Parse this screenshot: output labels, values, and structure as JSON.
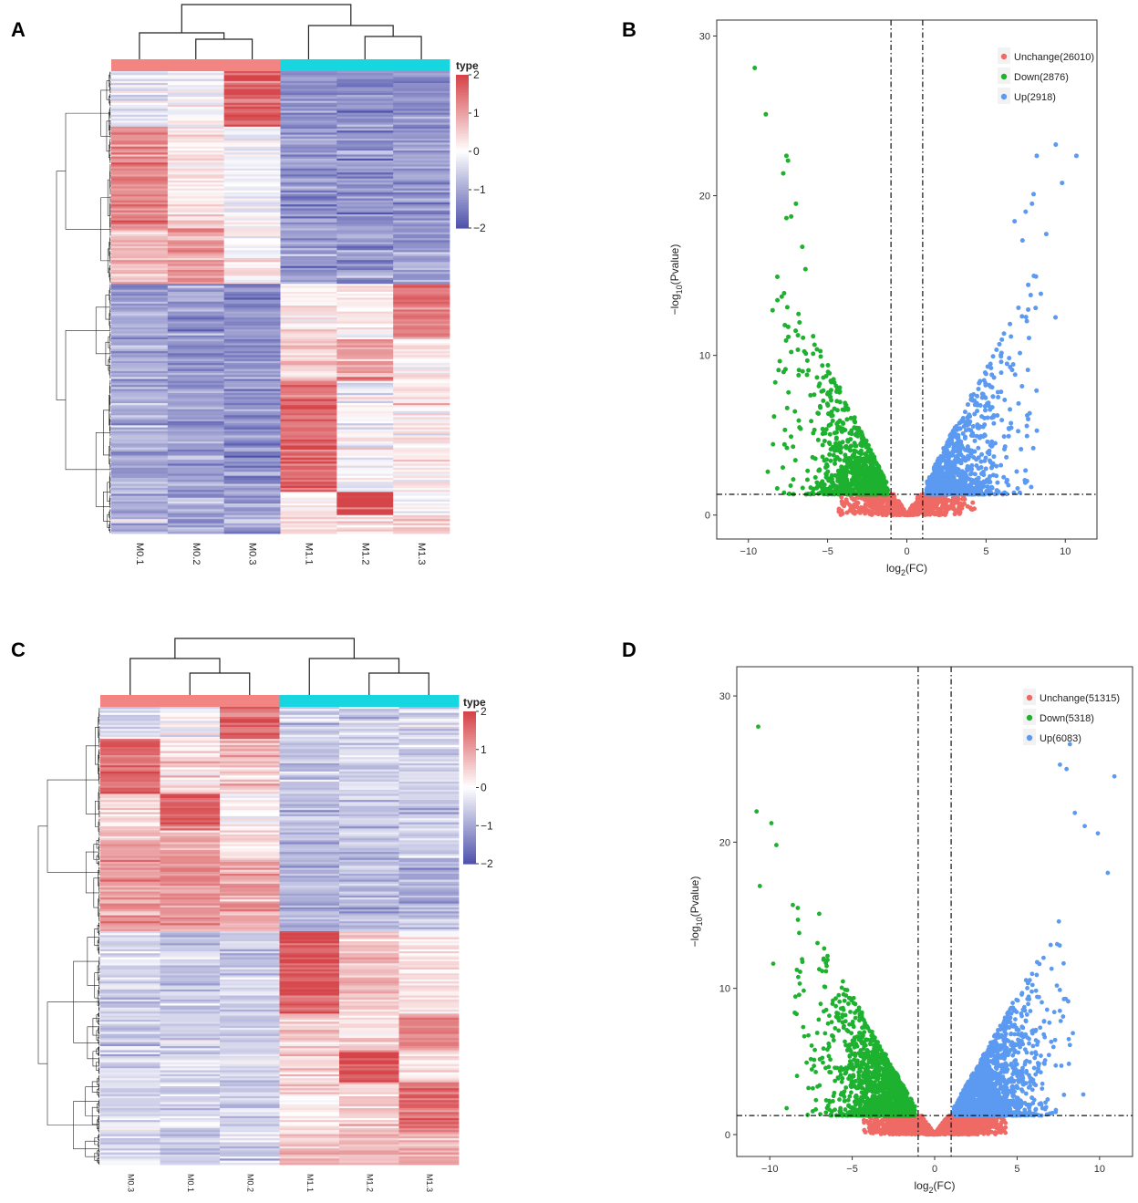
{
  "panel_labels": [
    "A",
    "B",
    "C",
    "D"
  ],
  "colors": {
    "heat_low": "#2b2f9a",
    "heat_mid": "#ffffff",
    "heat_high": "#d33a3f",
    "group_m0": "#f28482",
    "group_m1": "#17d6e0",
    "unchange": "#ef6a64",
    "down": "#1db12f",
    "up": "#5b9af0",
    "axis": "#333333"
  },
  "chart_data": [
    {
      "panel": "A",
      "type": "heatmap",
      "columns": [
        "M0.1",
        "M0.2",
        "M0.3",
        "M1.1",
        "M1.2",
        "M1.3"
      ],
      "groups": [
        "M0",
        "M0",
        "M0",
        "M1",
        "M1",
        "M1"
      ],
      "legend_title": "type",
      "scale_range": [
        -2,
        2
      ],
      "scale_ticks": [
        "2",
        "1",
        "0",
        "−1",
        "−2"
      ],
      "scale_values": [
        2,
        1,
        0,
        -1,
        -2
      ],
      "row_blocks": [
        {
          "share": 0.12,
          "means": [
            -0.3,
            -0.2,
            1.7,
            -1.2,
            -1.3,
            -1.2
          ]
        },
        {
          "share": 0.22,
          "means": [
            1.3,
            0.3,
            -0.1,
            -1.2,
            -1.3,
            -1.2
          ]
        },
        {
          "share": 0.12,
          "means": [
            0.7,
            1.1,
            0.1,
            -1.1,
            -1.2,
            -1.1
          ]
        },
        {
          "share": 0.12,
          "means": [
            -1.1,
            -1.2,
            -1.3,
            0.3,
            0.2,
            1.4
          ]
        },
        {
          "share": 0.09,
          "means": [
            -1.1,
            -1.2,
            -1.3,
            0.6,
            1.0,
            0.2
          ]
        },
        {
          "share": 0.24,
          "means": [
            -1.0,
            -1.1,
            -1.2,
            1.6,
            -0.1,
            0.2
          ]
        },
        {
          "share": 0.05,
          "means": [
            -1.0,
            -1.0,
            -1.1,
            0.2,
            1.9,
            0.0
          ]
        },
        {
          "share": 0.04,
          "means": [
            -1.0,
            -1.0,
            -1.1,
            0.3,
            0.4,
            0.5
          ]
        }
      ]
    },
    {
      "panel": "B",
      "type": "scatter",
      "xlabel_main": "log",
      "xlabel_sub": "2",
      "xlabel_tail": "(FC)",
      "ylabel_pre": "−log",
      "ylabel_sub": "10",
      "ylabel_tail": "(Pvalue)",
      "xlim": [
        -12,
        12
      ],
      "ylim": [
        -1.5,
        31
      ],
      "xticks": [
        -10,
        -5,
        0,
        5,
        10
      ],
      "xtick_labels": [
        "−10",
        "−5",
        "0",
        "5",
        "10"
      ],
      "yticks": [
        0,
        10,
        20,
        30
      ],
      "ytick_labels": [
        "0",
        "10",
        "20",
        "30"
      ],
      "fc_threshold": 1,
      "p_threshold": 1.3,
      "legend": [
        "Unchange(26010)",
        "Down(2876)",
        "Up(2918)"
      ],
      "counts": {
        "unchange": 26010,
        "down": 2876,
        "up": 2918
      },
      "highlights": {
        "down": [
          [
            -9.6,
            28.0
          ],
          [
            -8.9,
            25.1
          ],
          [
            -7.6,
            22.5
          ],
          [
            -7.5,
            22.2
          ],
          [
            -7.8,
            21.4
          ],
          [
            -7.0,
            19.5
          ],
          [
            -7.3,
            18.7
          ],
          [
            -7.6,
            18.6
          ],
          [
            -6.6,
            16.8
          ],
          [
            -6.4,
            15.4
          ]
        ],
        "up": [
          [
            9.4,
            23.2
          ],
          [
            10.7,
            22.5
          ],
          [
            8.2,
            22.5
          ],
          [
            9.8,
            20.8
          ],
          [
            8.0,
            20.1
          ],
          [
            7.9,
            19.5
          ],
          [
            7.5,
            19.0
          ],
          [
            6.8,
            18.4
          ],
          [
            8.8,
            17.6
          ],
          [
            7.3,
            17.2
          ]
        ]
      }
    },
    {
      "panel": "C",
      "type": "heatmap",
      "columns": [
        "M0.3",
        "M0.1",
        "M0.2",
        "M1.1",
        "M1.2",
        "M1.3"
      ],
      "groups": [
        "M0",
        "M0",
        "M0",
        "M1",
        "M1",
        "M1"
      ],
      "legend_title": "type",
      "scale_range": [
        -2,
        2
      ],
      "scale_ticks": [
        "2",
        "1",
        "0",
        "−1",
        "−2"
      ],
      "scale_values": [
        2,
        1,
        0,
        -1,
        -2
      ],
      "row_blocks": [
        {
          "share": 0.07,
          "means": [
            -0.4,
            -0.2,
            1.7,
            -0.6,
            -0.5,
            -0.4
          ]
        },
        {
          "share": 0.12,
          "means": [
            1.5,
            0.3,
            0.6,
            -0.7,
            -0.6,
            -0.5
          ]
        },
        {
          "share": 0.08,
          "means": [
            0.4,
            1.6,
            0.1,
            -0.7,
            -0.6,
            -0.6
          ]
        },
        {
          "share": 0.06,
          "means": [
            0.9,
            1.0,
            0.2,
            -0.8,
            -0.7,
            -0.6
          ]
        },
        {
          "share": 0.16,
          "means": [
            1.0,
            1.1,
            1.0,
            -0.9,
            -0.8,
            -0.8
          ]
        },
        {
          "share": 0.18,
          "means": [
            -0.5,
            -0.6,
            -0.6,
            1.7,
            0.6,
            0.3
          ]
        },
        {
          "share": 0.08,
          "means": [
            -0.6,
            -0.6,
            -0.6,
            0.6,
            0.2,
            1.2
          ]
        },
        {
          "share": 0.07,
          "means": [
            -0.5,
            -0.5,
            -0.5,
            0.3,
            1.8,
            0.3
          ]
        },
        {
          "share": 0.1,
          "means": [
            -0.5,
            -0.5,
            -0.5,
            0.2,
            0.4,
            1.6
          ]
        },
        {
          "share": 0.08,
          "means": [
            -0.4,
            -0.5,
            -0.4,
            0.6,
            0.9,
            0.8
          ]
        }
      ]
    },
    {
      "panel": "D",
      "type": "scatter",
      "xlabel_main": "log",
      "xlabel_sub": "2",
      "xlabel_tail": "(FC)",
      "ylabel_pre": "−log",
      "ylabel_sub": "10",
      "ylabel_tail": "(Pvalue)",
      "xlim": [
        -12,
        12
      ],
      "ylim": [
        -1.5,
        32
      ],
      "xticks": [
        -10,
        -5,
        0,
        5,
        10
      ],
      "xtick_labels": [
        "−10",
        "−5",
        "0",
        "5",
        "10"
      ],
      "yticks": [
        0,
        10,
        20,
        30
      ],
      "ytick_labels": [
        "0",
        "10",
        "20",
        "30"
      ],
      "fc_threshold": 1,
      "p_threshold": 1.3,
      "legend": [
        "Unchange(51315)",
        "Down(5318)",
        "Up(6083)"
      ],
      "counts": {
        "unchange": 51315,
        "down": 5318,
        "up": 6083
      },
      "highlights": {
        "down": [
          [
            -10.7,
            27.9
          ],
          [
            -10.8,
            22.1
          ],
          [
            -9.9,
            21.3
          ],
          [
            -9.6,
            19.8
          ],
          [
            -10.6,
            17.0
          ],
          [
            -8.6,
            15.7
          ],
          [
            -8.3,
            15.5
          ],
          [
            -7.0,
            15.1
          ]
        ],
        "up": [
          [
            10.9,
            24.5
          ],
          [
            8.2,
            26.7
          ],
          [
            7.6,
            25.3
          ],
          [
            8.0,
            25.0
          ],
          [
            9.9,
            20.6
          ],
          [
            10.5,
            17.9
          ],
          [
            8.5,
            22.0
          ],
          [
            9.1,
            21.1
          ]
        ]
      }
    }
  ]
}
